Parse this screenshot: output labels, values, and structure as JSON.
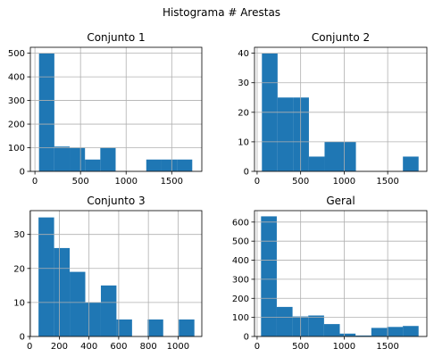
{
  "figure": {
    "title": "Histograma # Arestas"
  },
  "chart_data": [
    {
      "type": "bar",
      "title": "Conjunto 1",
      "xlabel": "",
      "ylabel": "",
      "grid": true,
      "color": "#1f77b4",
      "xlim": [
        -50,
        1830
      ],
      "ylim": [
        0,
        525
      ],
      "xticks": [
        0,
        500,
        1000,
        1500
      ],
      "yticks": [
        0,
        100,
        200,
        300,
        400,
        500
      ],
      "bins": [
        {
          "x0": 45,
          "x1": 213,
          "value": 500
        },
        {
          "x0": 213,
          "x1": 381,
          "value": 105
        },
        {
          "x0": 381,
          "x1": 549,
          "value": 100
        },
        {
          "x0": 549,
          "x1": 717,
          "value": 50
        },
        {
          "x0": 717,
          "x1": 885,
          "value": 100
        },
        {
          "x0": 885,
          "x1": 1053,
          "value": 0
        },
        {
          "x0": 1053,
          "x1": 1221,
          "value": 0
        },
        {
          "x0": 1221,
          "x1": 1389,
          "value": 50
        },
        {
          "x0": 1389,
          "x1": 1557,
          "value": 50
        },
        {
          "x0": 1557,
          "x1": 1725,
          "value": 50
        }
      ]
    },
    {
      "type": "bar",
      "title": "Conjunto 2",
      "xlabel": "",
      "ylabel": "",
      "grid": true,
      "color": "#1f77b4",
      "xlim": [
        -30,
        1950
      ],
      "ylim": [
        0,
        42
      ],
      "xticks": [
        0,
        500,
        1000,
        1500
      ],
      "yticks": [
        0,
        10,
        20,
        30,
        40
      ],
      "bins": [
        {
          "x0": 55,
          "x1": 235,
          "value": 40
        },
        {
          "x0": 235,
          "x1": 415,
          "value": 25
        },
        {
          "x0": 415,
          "x1": 595,
          "value": 25
        },
        {
          "x0": 595,
          "x1": 775,
          "value": 5
        },
        {
          "x0": 775,
          "x1": 955,
          "value": 10
        },
        {
          "x0": 955,
          "x1": 1135,
          "value": 10
        },
        {
          "x0": 1135,
          "x1": 1315,
          "value": 0
        },
        {
          "x0": 1315,
          "x1": 1495,
          "value": 0
        },
        {
          "x0": 1495,
          "x1": 1675,
          "value": 0
        },
        {
          "x0": 1675,
          "x1": 1855,
          "value": 5
        }
      ]
    },
    {
      "type": "bar",
      "title": "Conjunto 3",
      "xlabel": "",
      "ylabel": "",
      "grid": true,
      "color": "#1f77b4",
      "xlim": [
        5,
        1160
      ],
      "ylim": [
        0,
        37
      ],
      "xticks": [
        0,
        200,
        400,
        600,
        800,
        1000
      ],
      "yticks": [
        0,
        10,
        20,
        30
      ],
      "bins": [
        {
          "x0": 60,
          "x1": 165,
          "value": 35
        },
        {
          "x0": 165,
          "x1": 270,
          "value": 26
        },
        {
          "x0": 270,
          "x1": 375,
          "value": 19
        },
        {
          "x0": 375,
          "x1": 480,
          "value": 10
        },
        {
          "x0": 480,
          "x1": 585,
          "value": 15
        },
        {
          "x0": 585,
          "x1": 690,
          "value": 5
        },
        {
          "x0": 690,
          "x1": 795,
          "value": 0
        },
        {
          "x0": 795,
          "x1": 900,
          "value": 5
        },
        {
          "x0": 900,
          "x1": 1005,
          "value": 0
        },
        {
          "x0": 1005,
          "x1": 1110,
          "value": 5
        }
      ]
    },
    {
      "type": "bar",
      "title": "Geral",
      "xlabel": "",
      "ylabel": "",
      "grid": true,
      "color": "#1f77b4",
      "xlim": [
        -30,
        1950
      ],
      "ylim": [
        0,
        660
      ],
      "xticks": [
        0,
        500,
        1000,
        1500
      ],
      "yticks": [
        0,
        100,
        200,
        300,
        400,
        500,
        600
      ],
      "bins": [
        {
          "x0": 45,
          "x1": 226,
          "value": 630
        },
        {
          "x0": 226,
          "x1": 407,
          "value": 155
        },
        {
          "x0": 407,
          "x1": 588,
          "value": 105
        },
        {
          "x0": 588,
          "x1": 769,
          "value": 110
        },
        {
          "x0": 769,
          "x1": 950,
          "value": 65
        },
        {
          "x0": 950,
          "x1": 1131,
          "value": 15
        },
        {
          "x0": 1131,
          "x1": 1312,
          "value": 5
        },
        {
          "x0": 1312,
          "x1": 1493,
          "value": 45
        },
        {
          "x0": 1493,
          "x1": 1674,
          "value": 50
        },
        {
          "x0": 1674,
          "x1": 1855,
          "value": 55
        }
      ]
    }
  ]
}
